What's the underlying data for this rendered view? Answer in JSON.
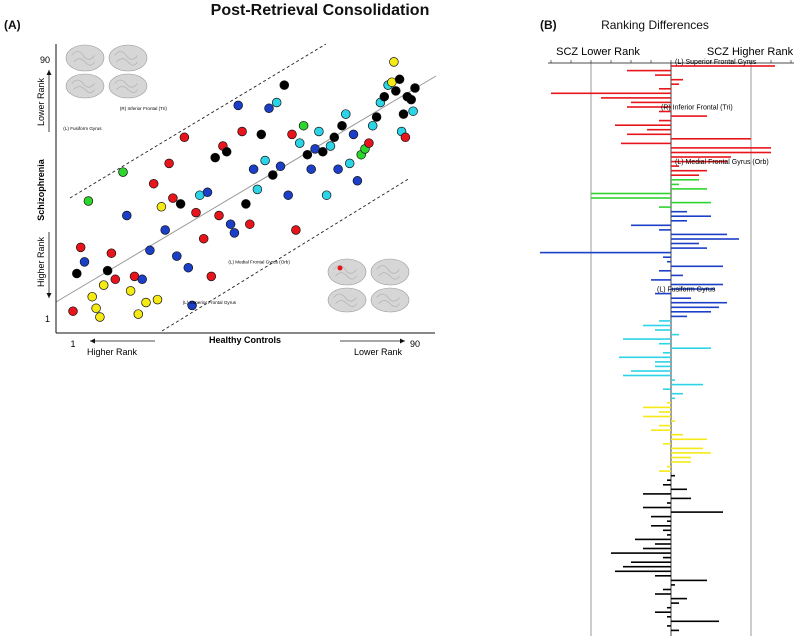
{
  "figure": {
    "title": "Post-Retrieval Consolidation",
    "panel_a_label": "(A)",
    "panel_b_label": "(B)",
    "panel_b_title": "Ranking Differences"
  },
  "colors": {
    "red": "#e8141b",
    "blue": "#1c3fc8",
    "cyan": "#2bd4e6",
    "yellow": "#f5ea14",
    "green": "#2dd62d",
    "black": "#000000"
  },
  "chart_data": [
    {
      "type": "scatter",
      "xlabel": "Healthy Controls",
      "ylabel": "Schizophrenia",
      "x_ticks": [
        "1",
        "90"
      ],
      "y_ticks": [
        "1",
        "90"
      ],
      "xlim": [
        1,
        90
      ],
      "ylim": [
        1,
        90
      ],
      "x_direction_left": "Higher Rank",
      "x_direction_right": "Lower Rank",
      "y_direction_bottom": "Higher Rank",
      "y_direction_top": "Lower Rank",
      "annotations": [
        {
          "text": "(R) Inferior Frontal (Tri)",
          "x": 27,
          "y": 73
        },
        {
          "text": "(L) Fusiform Gyrus",
          "x": 10,
          "y": 66
        },
        {
          "text": "(L) Medial Frontal Gyrus (Orb)",
          "x": 59,
          "y": 20
        },
        {
          "text": "(L) Superior Frontal Gyrus",
          "x": 45,
          "y": 6
        }
      ],
      "points": [
        {
          "x": 1,
          "y": 3,
          "c": "red"
        },
        {
          "x": 2,
          "y": 16,
          "c": "black"
        },
        {
          "x": 3,
          "y": 25,
          "c": "red"
        },
        {
          "x": 4,
          "y": 20,
          "c": "blue"
        },
        {
          "x": 5,
          "y": 41,
          "c": "green"
        },
        {
          "x": 6,
          "y": 8,
          "c": "yellow"
        },
        {
          "x": 7,
          "y": 4,
          "c": "yellow"
        },
        {
          "x": 8,
          "y": 1,
          "c": "yellow"
        },
        {
          "x": 9,
          "y": 12,
          "c": "yellow"
        },
        {
          "x": 10,
          "y": 17,
          "c": "black"
        },
        {
          "x": 11,
          "y": 23,
          "c": "red"
        },
        {
          "x": 12,
          "y": 14,
          "c": "red"
        },
        {
          "x": 14,
          "y": 51,
          "c": "green"
        },
        {
          "x": 15,
          "y": 36,
          "c": "blue"
        },
        {
          "x": 16,
          "y": 10,
          "c": "yellow"
        },
        {
          "x": 17,
          "y": 15,
          "c": "red"
        },
        {
          "x": 18,
          "y": 2,
          "c": "yellow"
        },
        {
          "x": 19,
          "y": 14,
          "c": "blue"
        },
        {
          "x": 20,
          "y": 6,
          "c": "yellow"
        },
        {
          "x": 21,
          "y": 24,
          "c": "blue"
        },
        {
          "x": 22,
          "y": 47,
          "c": "red"
        },
        {
          "x": 23,
          "y": 7,
          "c": "yellow"
        },
        {
          "x": 24,
          "y": 39,
          "c": "yellow"
        },
        {
          "x": 25,
          "y": 31,
          "c": "blue"
        },
        {
          "x": 26,
          "y": 54,
          "c": "red"
        },
        {
          "x": 27,
          "y": 42,
          "c": "red"
        },
        {
          "x": 28,
          "y": 22,
          "c": "blue"
        },
        {
          "x": 29,
          "y": 40,
          "c": "black"
        },
        {
          "x": 30,
          "y": 63,
          "c": "red"
        },
        {
          "x": 31,
          "y": 18,
          "c": "blue"
        },
        {
          "x": 32,
          "y": 5,
          "c": "blue"
        },
        {
          "x": 33,
          "y": 37,
          "c": "red"
        },
        {
          "x": 34,
          "y": 43,
          "c": "cyan"
        },
        {
          "x": 35,
          "y": 28,
          "c": "red"
        },
        {
          "x": 36,
          "y": 44,
          "c": "blue"
        },
        {
          "x": 37,
          "y": 15,
          "c": "red"
        },
        {
          "x": 38,
          "y": 56,
          "c": "black"
        },
        {
          "x": 39,
          "y": 36,
          "c": "red"
        },
        {
          "x": 40,
          "y": 60,
          "c": "red"
        },
        {
          "x": 41,
          "y": 58,
          "c": "black"
        },
        {
          "x": 42,
          "y": 33,
          "c": "blue"
        },
        {
          "x": 43,
          "y": 30,
          "c": "blue"
        },
        {
          "x": 44,
          "y": 74,
          "c": "blue"
        },
        {
          "x": 45,
          "y": 65,
          "c": "red"
        },
        {
          "x": 46,
          "y": 40,
          "c": "black"
        },
        {
          "x": 47,
          "y": 33,
          "c": "red"
        },
        {
          "x": 48,
          "y": 52,
          "c": "blue"
        },
        {
          "x": 49,
          "y": 45,
          "c": "cyan"
        },
        {
          "x": 50,
          "y": 64,
          "c": "black"
        },
        {
          "x": 51,
          "y": 55,
          "c": "cyan"
        },
        {
          "x": 52,
          "y": 73,
          "c": "blue"
        },
        {
          "x": 53,
          "y": 50,
          "c": "black"
        },
        {
          "x": 54,
          "y": 75,
          "c": "cyan"
        },
        {
          "x": 55,
          "y": 53,
          "c": "blue"
        },
        {
          "x": 56,
          "y": 81,
          "c": "black"
        },
        {
          "x": 57,
          "y": 43,
          "c": "blue"
        },
        {
          "x": 58,
          "y": 64,
          "c": "red"
        },
        {
          "x": 59,
          "y": 31,
          "c": "red"
        },
        {
          "x": 60,
          "y": 61,
          "c": "cyan"
        },
        {
          "x": 61,
          "y": 67,
          "c": "green"
        },
        {
          "x": 62,
          "y": 57,
          "c": "black"
        },
        {
          "x": 63,
          "y": 52,
          "c": "blue"
        },
        {
          "x": 64,
          "y": 59,
          "c": "blue"
        },
        {
          "x": 65,
          "y": 65,
          "c": "cyan"
        },
        {
          "x": 66,
          "y": 58,
          "c": "black"
        },
        {
          "x": 67,
          "y": 43,
          "c": "cyan"
        },
        {
          "x": 68,
          "y": 60,
          "c": "cyan"
        },
        {
          "x": 69,
          "y": 63,
          "c": "black"
        },
        {
          "x": 70,
          "y": 52,
          "c": "blue"
        },
        {
          "x": 71,
          "y": 67,
          "c": "black"
        },
        {
          "x": 72,
          "y": 71,
          "c": "cyan"
        },
        {
          "x": 73,
          "y": 54,
          "c": "cyan"
        },
        {
          "x": 74,
          "y": 64,
          "c": "blue"
        },
        {
          "x": 75,
          "y": 48,
          "c": "blue"
        },
        {
          "x": 76,
          "y": 57,
          "c": "green"
        },
        {
          "x": 77,
          "y": 59,
          "c": "green"
        },
        {
          "x": 78,
          "y": 61,
          "c": "red"
        },
        {
          "x": 79,
          "y": 67,
          "c": "cyan"
        },
        {
          "x": 80,
          "y": 70,
          "c": "black"
        },
        {
          "x": 81,
          "y": 75,
          "c": "cyan"
        },
        {
          "x": 82,
          "y": 77,
          "c": "black"
        },
        {
          "x": 83,
          "y": 81,
          "c": "cyan"
        },
        {
          "x": 84,
          "y": 82,
          "c": "yellow"
        },
        {
          "x": 84.5,
          "y": 89,
          "c": "yellow"
        },
        {
          "x": 85,
          "y": 79,
          "c": "black"
        },
        {
          "x": 86,
          "y": 83,
          "c": "black"
        },
        {
          "x": 86.5,
          "y": 65,
          "c": "cyan"
        },
        {
          "x": 87,
          "y": 71,
          "c": "black"
        },
        {
          "x": 87.5,
          "y": 63,
          "c": "red"
        },
        {
          "x": 88,
          "y": 77,
          "c": "black"
        },
        {
          "x": 89,
          "y": 76,
          "c": "black"
        },
        {
          "x": 89.5,
          "y": 72,
          "c": "cyan"
        },
        {
          "x": 90,
          "y": 80,
          "c": "black"
        }
      ],
      "diagonal": "identity line with dashed parallel bands"
    },
    {
      "type": "bar",
      "orientation": "horizontal",
      "title": "Ranking Differences",
      "left_label": "SCZ Lower Rank",
      "right_label": "SCZ Higher Rank",
      "xlim": [
        -66,
        66
      ],
      "vertical_gridlines": [
        -40,
        40
      ],
      "annotations": [
        {
          "text": "(L) Superior Frontal Gyrus",
          "bar_index": 0
        },
        {
          "text": "(R) Inferior Frontal (Tri)",
          "bar_index": 10
        },
        {
          "text": "(L) Medial Frontal Gyrus (Orb)",
          "bar_index": 22
        },
        {
          "text": "(L) Fusiform Gyrus",
          "bar_index": 50
        }
      ],
      "groups": [
        {
          "color": "red",
          "values": [
            52,
            -22,
            -8,
            6,
            4,
            -6,
            -60,
            -35,
            -20,
            -22,
            -6,
            18,
            -6,
            -28,
            -12,
            -22,
            40,
            -25,
            50,
            50,
            30,
            28,
            4,
            18,
            14
          ]
        },
        {
          "color": "green",
          "values": [
            14,
            4,
            18,
            -40,
            -40,
            20,
            -6
          ]
        },
        {
          "color": "blue",
          "values": [
            8,
            20,
            8,
            -20,
            -6,
            28,
            34,
            14,
            18,
            -66,
            -4,
            -2,
            26,
            -6,
            6,
            -10,
            26,
            22,
            -8,
            10,
            28,
            24,
            20,
            8
          ]
        },
        {
          "color": "cyan",
          "values": [
            -6,
            -14,
            -8,
            4,
            -24,
            -6,
            20,
            -4,
            -26,
            -8,
            -8,
            -20,
            -24,
            2,
            16,
            -4,
            6,
            2
          ]
        },
        {
          "color": "yellow",
          "values": [
            -2,
            -14,
            -6,
            -14,
            2,
            -6,
            -10,
            6,
            18,
            -4,
            16,
            20,
            10,
            10,
            -2,
            -6
          ]
        },
        {
          "color": "black",
          "values": [
            2,
            -2,
            -4,
            8,
            -14,
            10,
            -2,
            -14,
            26,
            -10,
            -2,
            -10,
            -4,
            -2,
            -18,
            -8,
            -14,
            -30,
            -4,
            -20,
            -24,
            -28,
            -8,
            18,
            2,
            -4,
            -8,
            8,
            4,
            -2,
            -8,
            -2,
            24,
            -2,
            4
          ]
        }
      ]
    }
  ]
}
